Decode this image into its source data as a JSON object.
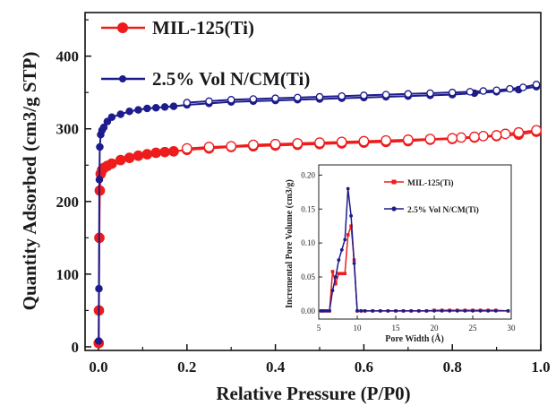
{
  "chart_data": [
    {
      "type": "line",
      "panel": "main",
      "xlabel": "Relative Pressure (P/P0)",
      "ylabel": "Quantity Adsorbed (cm3/g STP)",
      "xlim": [
        0.0,
        1.0
      ],
      "ylim": [
        -5,
        460
      ],
      "x_ticks": [
        "0.0",
        "0.2",
        "0.4",
        "0.6",
        "0.8",
        "1.0"
      ],
      "y_ticks": [
        "0",
        "100",
        "200",
        "300",
        "400"
      ],
      "legend": "top-left",
      "grid": false,
      "series": [
        {
          "name": "MIL-125(Ti)",
          "color": "#ee1c1c",
          "marker": "circle",
          "adsorption": {
            "x": [
              0.0005,
              0.001,
              0.002,
              0.003,
              0.005,
              0.008,
              0.012,
              0.02,
              0.03,
              0.05,
              0.07,
              0.09,
              0.11,
              0.13,
              0.15,
              0.17,
              0.2,
              0.25,
              0.3,
              0.35,
              0.4,
              0.45,
              0.5,
              0.55,
              0.6,
              0.65,
              0.7,
              0.75,
              0.8,
              0.85,
              0.9,
              0.95,
              0.99
            ],
            "y": [
              5,
              50,
              150,
              215,
              238,
              243,
              246,
              249,
              252,
              257,
              260,
              263,
              265,
              267,
              268,
              269,
              271,
              273,
              275,
              276,
              277,
              278,
              279,
              280,
              281,
              282,
              283,
              285,
              286,
              288,
              290,
              292,
              296
            ]
          },
          "desorption": {
            "x": [
              0.99,
              0.95,
              0.92,
              0.9,
              0.87,
              0.85,
              0.82,
              0.8,
              0.75,
              0.7,
              0.65,
              0.6,
              0.55,
              0.5,
              0.45,
              0.4,
              0.35,
              0.3,
              0.25,
              0.2
            ],
            "y": [
              298,
              295,
              293,
              291,
              290,
              289,
              288,
              287,
              286,
              285,
              284,
              283,
              282,
              281,
              280,
              279,
              278,
              276,
              275,
              273
            ]
          }
        },
        {
          "name": "2.5% Vol N/CM(Ti)",
          "color": "#1c1c8c",
          "marker": "circle",
          "adsorption": {
            "x": [
              0.0005,
              0.001,
              0.002,
              0.003,
              0.005,
              0.008,
              0.012,
              0.02,
              0.03,
              0.05,
              0.07,
              0.09,
              0.11,
              0.13,
              0.15,
              0.17,
              0.2,
              0.25,
              0.3,
              0.35,
              0.4,
              0.45,
              0.5,
              0.55,
              0.6,
              0.65,
              0.7,
              0.75,
              0.8,
              0.85,
              0.9,
              0.95,
              0.99
            ],
            "y": [
              8,
              80,
              230,
              275,
              292,
              298,
              302,
              310,
              316,
              320,
              324,
              326,
              328,
              329,
              330,
              331,
              333,
              335,
              337,
              338,
              339,
              340,
              341,
              342,
              343,
              344,
              345,
              346,
              347,
              349,
              351,
              354,
              358
            ]
          },
          "desorption": {
            "x": [
              0.99,
              0.96,
              0.93,
              0.9,
              0.87,
              0.84,
              0.8,
              0.75,
              0.7,
              0.65,
              0.6,
              0.55,
              0.5,
              0.45,
              0.4,
              0.35,
              0.3,
              0.25,
              0.2
            ],
            "y": [
              361,
              357,
              355,
              353,
              352,
              351,
              350,
              349,
              348,
              347,
              346,
              345,
              344,
              343,
              342,
              341,
              340,
              338,
              336
            ]
          }
        }
      ]
    },
    {
      "type": "line",
      "panel": "inset",
      "xlabel": "Pore Width (Å)",
      "ylabel": "Incremental Pore Volume (cm3/g)",
      "xlim": [
        5,
        30
      ],
      "ylim": [
        -0.012,
        0.215
      ],
      "x_ticks": [
        "5",
        "10",
        "15",
        "20",
        "25",
        "30"
      ],
      "y_ticks": [
        "0.00",
        "0.05",
        "0.10",
        "0.15",
        "0.20"
      ],
      "legend": "top-right",
      "series": [
        {
          "name": "MIL-125(Ti)",
          "color": "#ee1c1c",
          "marker": "square",
          "x": [
            5.3,
            5.6,
            6.0,
            6.4,
            6.8,
            7.2,
            7.6,
            8.0,
            8.4,
            8.8,
            9.2,
            9.6,
            10.0,
            10.5,
            11.0,
            12.0,
            13.0,
            14.0,
            15.0,
            16.0,
            17.0,
            18.0,
            19.0,
            20.0,
            21.0,
            22.0,
            23.0,
            24.0,
            25.0,
            26.0,
            27.0,
            28.0,
            29.6
          ],
          "y": [
            0,
            0,
            0,
            0,
            0.058,
            0.04,
            0.055,
            0.055,
            0.055,
            0.112,
            0.125,
            0.075,
            0,
            0,
            0,
            0,
            0,
            0,
            0,
            0,
            0,
            0,
            0,
            0.001,
            0.001,
            0.001,
            0.001,
            0.001,
            0.001,
            0.001,
            0.001,
            0.001,
            0
          ]
        },
        {
          "name": "2.5% Vol N/CM(Ti)",
          "color": "#1c1c8c",
          "marker": "circle",
          "x": [
            5.3,
            5.6,
            6.0,
            6.4,
            6.8,
            7.2,
            7.6,
            8.0,
            8.4,
            8.8,
            9.2,
            9.6,
            10.0,
            10.5,
            11.0,
            12.0,
            13.0,
            14.0,
            15.0,
            16.0,
            17.0,
            18.0,
            19.0,
            20.0,
            21.0,
            22.0,
            23.0,
            24.0,
            25.0,
            26.0,
            27.0,
            28.0,
            29.6
          ],
          "y": [
            0,
            0,
            0,
            0,
            0.03,
            0.05,
            0.075,
            0.09,
            0.105,
            0.18,
            0.14,
            0.07,
            0,
            0,
            0,
            0,
            0,
            0,
            0,
            0,
            0,
            0,
            0,
            0,
            0,
            0,
            0,
            0,
            0,
            0,
            0,
            0,
            0
          ]
        }
      ]
    }
  ]
}
